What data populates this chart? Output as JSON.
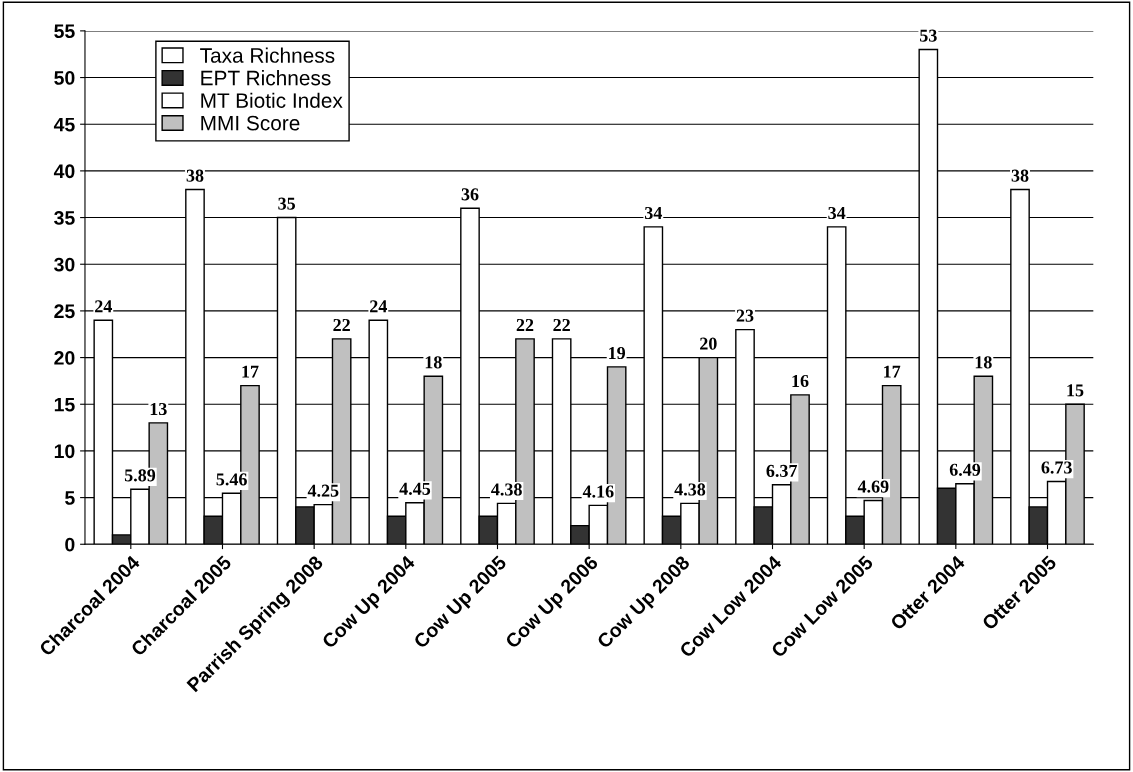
{
  "chart_data": {
    "type": "bar",
    "categories": [
      "Charcoal 2004",
      "Charcoal 2005",
      "Parrish Spring 2008",
      "Cow Up 2004",
      "Cow Up 2005",
      "Cow Up 2006",
      "Cow Up 2008",
      "Cow Low 2004",
      "Cow Low 2005",
      "Otter 2004",
      "Otter 2005"
    ],
    "series": [
      {
        "name": "Taxa Richness",
        "color": "#ffffff",
        "values": [
          24,
          38,
          35,
          24,
          36,
          22,
          34,
          23,
          34,
          53,
          38
        ],
        "value_labels": [
          "24",
          "38",
          "35",
          "24",
          "36",
          "22",
          "34",
          "23",
          "34",
          "53",
          "38"
        ]
      },
      {
        "name": "EPT Richness",
        "color": "#333333",
        "values": [
          1,
          3,
          4,
          3,
          3,
          2,
          3,
          4,
          3,
          6,
          4
        ]
      },
      {
        "name": "MT Biotic Index",
        "color": "#ffffff",
        "values": [
          5.89,
          5.46,
          4.25,
          4.45,
          4.38,
          4.16,
          4.38,
          6.37,
          4.69,
          6.49,
          6.73
        ],
        "value_labels": [
          "5.89",
          "5.46",
          "4.25",
          "4.45",
          "4.38",
          "4.16",
          "4.38",
          "6.37",
          "4.69",
          "6.49",
          "6.73"
        ]
      },
      {
        "name": "MMI Score",
        "color": "#c0c0c0",
        "values": [
          13,
          17,
          22,
          18,
          22,
          19,
          20,
          16,
          17,
          18,
          15
        ],
        "value_labels": [
          "13",
          "17",
          "22",
          "18",
          "22",
          "19",
          "20",
          "16",
          "17",
          "18",
          "15"
        ]
      }
    ],
    "ylim": [
      0,
      55
    ],
    "yticks": [
      0,
      5,
      10,
      15,
      20,
      25,
      30,
      35,
      40,
      45,
      50,
      55
    ],
    "grid": "y",
    "legend": "top left"
  }
}
